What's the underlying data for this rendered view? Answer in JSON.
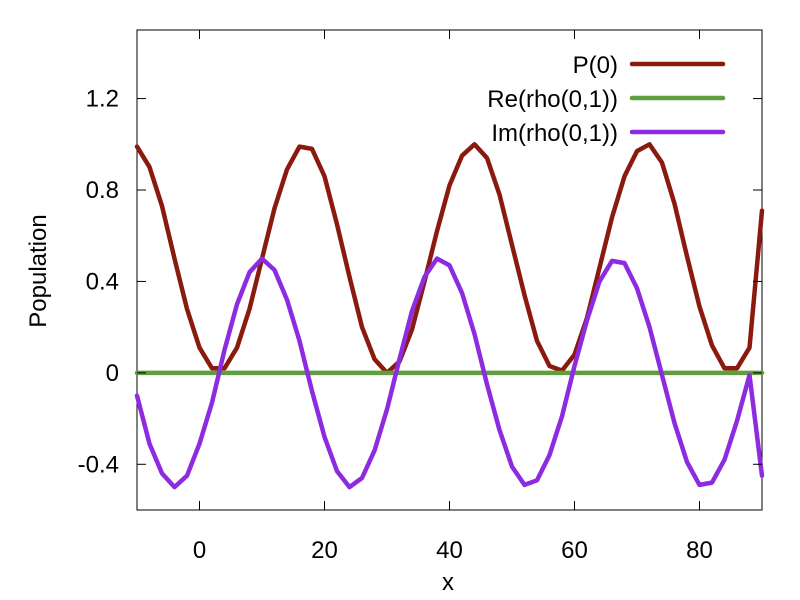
{
  "chart_data": {
    "type": "line",
    "title": "",
    "xlabel": "x",
    "ylabel": "Population",
    "xlim": [
      -10,
      90
    ],
    "ylim": [
      -0.6,
      1.5
    ],
    "xticks": [
      0,
      20,
      40,
      60,
      80
    ],
    "yticks": [
      -0.4,
      0,
      0.4,
      0.8,
      1.2
    ],
    "xtick_labels": [
      "0",
      "20",
      "40",
      "60",
      "80"
    ],
    "ytick_labels": [
      "-0.4",
      "0",
      "0.4",
      "0.8",
      "1.2"
    ],
    "grid": false,
    "legend_position": "top-right",
    "x": [
      -10,
      -8,
      -6,
      -4,
      -2,
      0,
      2,
      4,
      6,
      8,
      10,
      12,
      14,
      16,
      18,
      20,
      22,
      24,
      26,
      28,
      30,
      32,
      34,
      36,
      38,
      40,
      42,
      44,
      46,
      48,
      50,
      52,
      54,
      56,
      58,
      60,
      62,
      64,
      66,
      68,
      70,
      72,
      74,
      76,
      78,
      80,
      82,
      84,
      86,
      88,
      90
    ],
    "series": [
      {
        "name": "P(0)",
        "color": "#8b1a0e",
        "values": [
          0.99,
          0.9,
          0.73,
          0.5,
          0.28,
          0.11,
          0.02,
          0.02,
          0.11,
          0.28,
          0.5,
          0.72,
          0.89,
          0.99,
          0.98,
          0.86,
          0.65,
          0.42,
          0.2,
          0.06,
          0.0,
          0.05,
          0.19,
          0.4,
          0.62,
          0.82,
          0.95,
          1.0,
          0.94,
          0.78,
          0.56,
          0.34,
          0.14,
          0.03,
          0.01,
          0.08,
          0.24,
          0.46,
          0.68,
          0.86,
          0.97,
          1.0,
          0.92,
          0.74,
          0.51,
          0.29,
          0.12,
          0.02,
          0.02,
          0.11,
          0.71
        ]
      },
      {
        "name": "Re(rho(0,1))",
        "color": "#5f9e3c",
        "values": [
          0,
          0,
          0,
          0,
          0,
          0,
          0,
          0,
          0,
          0,
          0,
          0,
          0,
          0,
          0,
          0,
          0,
          0,
          0,
          0,
          0,
          0,
          0,
          0,
          0,
          0,
          0,
          0,
          0,
          0,
          0,
          0,
          0,
          0,
          0,
          0,
          0,
          0,
          0,
          0,
          0,
          0,
          0,
          0,
          0,
          0,
          0,
          0,
          0,
          0,
          0
        ]
      },
      {
        "name": "Im(rho(0,1))",
        "color": "#8c2be0",
        "values": [
          -0.1,
          -0.31,
          -0.44,
          -0.5,
          -0.45,
          -0.31,
          -0.13,
          0.1,
          0.3,
          0.44,
          0.5,
          0.45,
          0.32,
          0.14,
          -0.08,
          -0.28,
          -0.43,
          -0.5,
          -0.46,
          -0.34,
          -0.16,
          0.06,
          0.27,
          0.42,
          0.5,
          0.47,
          0.35,
          0.17,
          -0.05,
          -0.25,
          -0.41,
          -0.49,
          -0.47,
          -0.36,
          -0.19,
          0.03,
          0.23,
          0.4,
          0.49,
          0.48,
          0.37,
          0.2,
          -0.01,
          -0.22,
          -0.39,
          -0.49,
          -0.48,
          -0.38,
          -0.21,
          -0.01,
          -0.45
        ]
      }
    ]
  }
}
